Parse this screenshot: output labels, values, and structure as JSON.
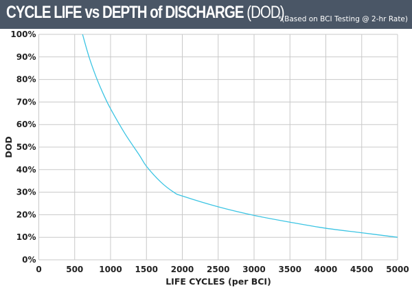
{
  "header": {
    "title_bold": "CYCLE LIFE vs DEPTH of DISCHARGE",
    "title_light": "(DOD)",
    "note": "*(Based on BCI Testing @ 2-hr Rate)"
  },
  "colors": {
    "header_bg": "#4a5666",
    "line": "#3bc4e3",
    "grid": "#c8c8c8"
  },
  "chart_data": {
    "type": "line",
    "title": "CYCLE LIFE vs DEPTH of DISCHARGE (DOD)",
    "xlabel": "LIFE CYCLES (per BCI)",
    "ylabel": "DOD",
    "xlim": [
      0,
      5000
    ],
    "ylim": [
      0,
      100
    ],
    "grid": true,
    "x_ticks": [
      "0",
      "500",
      "1000",
      "1500",
      "2000",
      "2500",
      "3000",
      "3500",
      "4000",
      "4500",
      "5000"
    ],
    "y_ticks": [
      "0%",
      "10%",
      "20%",
      "30%",
      "40%",
      "50%",
      "60%",
      "70%",
      "80%",
      "90%",
      "100%"
    ],
    "series": [
      {
        "name": "DOD",
        "x": [
          610,
          700,
          800,
          900,
          1000,
          1200,
          1400,
          1500,
          1700,
          1880,
          2000,
          2500,
          3000,
          3500,
          4000,
          4500,
          5000
        ],
        "y": [
          100,
          90,
          81,
          73.5,
          67,
          56,
          46.5,
          41.5,
          34.5,
          30,
          28.3,
          23.5,
          19.7,
          16.7,
          14,
          12,
          10
        ]
      }
    ]
  }
}
